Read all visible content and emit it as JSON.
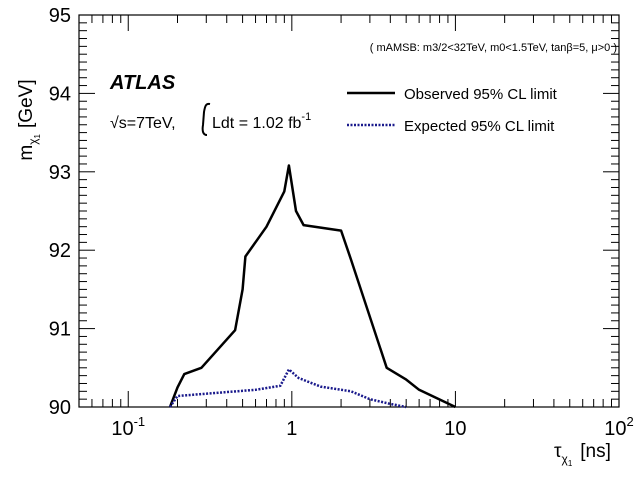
{
  "chart_data": {
    "type": "line",
    "xscale": "log",
    "xlim": [
      0.05,
      100
    ],
    "ylim": [
      90,
      95
    ],
    "xticks": [
      {
        "value": 0.1,
        "base": "10",
        "exp": "-1"
      },
      {
        "value": 1,
        "base": "1",
        "exp": ""
      },
      {
        "value": 10,
        "base": "10",
        "exp": ""
      },
      {
        "value": 100,
        "base": "10",
        "exp": "2"
      }
    ],
    "yticks": [
      {
        "value": 90,
        "label": "90"
      },
      {
        "value": 91,
        "label": "91"
      },
      {
        "value": 92,
        "label": "92"
      },
      {
        "value": 93,
        "label": "93"
      },
      {
        "value": 94,
        "label": "94"
      },
      {
        "value": 95,
        "label": "95"
      }
    ],
    "xlabel": {
      "symbol": "τ",
      "sub": "χ",
      "subsub": "1",
      "unit": "[ns]"
    },
    "ylabel": {
      "symbol": "m",
      "sub": "χ",
      "subsub": "1",
      "unit": "[GeV]"
    },
    "annotations": {
      "experiment": "ATLAS",
      "energy": "√s=7TeV,",
      "lumi_prefix": "Ldt = 1.02 fb",
      "lumi_exp": "-1",
      "model": "( mAMSB:  m3/2<32TeV, m0<1.5TeV, tanβ=5, μ>0 )"
    },
    "legend_position": "top-right",
    "series": [
      {
        "name": "Observed 95% CL limit",
        "color": "#000000",
        "style": "solid",
        "points": [
          [
            0.18,
            90.0
          ],
          [
            0.2,
            90.25
          ],
          [
            0.22,
            90.42
          ],
          [
            0.28,
            90.5
          ],
          [
            0.45,
            90.98
          ],
          [
            0.5,
            91.5
          ],
          [
            0.52,
            91.92
          ],
          [
            0.7,
            92.3
          ],
          [
            0.9,
            92.75
          ],
          [
            0.96,
            93.08
          ],
          [
            1.06,
            92.5
          ],
          [
            1.18,
            92.32
          ],
          [
            2.0,
            92.25
          ],
          [
            2.3,
            91.88
          ],
          [
            3.8,
            90.5
          ],
          [
            5.0,
            90.35
          ],
          [
            6.0,
            90.22
          ],
          [
            10.0,
            90.0
          ]
        ]
      },
      {
        "name": "Expected 95% CL limit",
        "color": "#1a1a8c",
        "style": "dotted",
        "points": [
          [
            0.18,
            90.0
          ],
          [
            0.2,
            90.14
          ],
          [
            0.3,
            90.17
          ],
          [
            0.6,
            90.22
          ],
          [
            0.85,
            90.27
          ],
          [
            0.96,
            90.48
          ],
          [
            1.1,
            90.37
          ],
          [
            1.5,
            90.26
          ],
          [
            2.3,
            90.2
          ],
          [
            3.0,
            90.1
          ],
          [
            4.0,
            90.04
          ],
          [
            5.0,
            90.0
          ]
        ]
      }
    ]
  }
}
